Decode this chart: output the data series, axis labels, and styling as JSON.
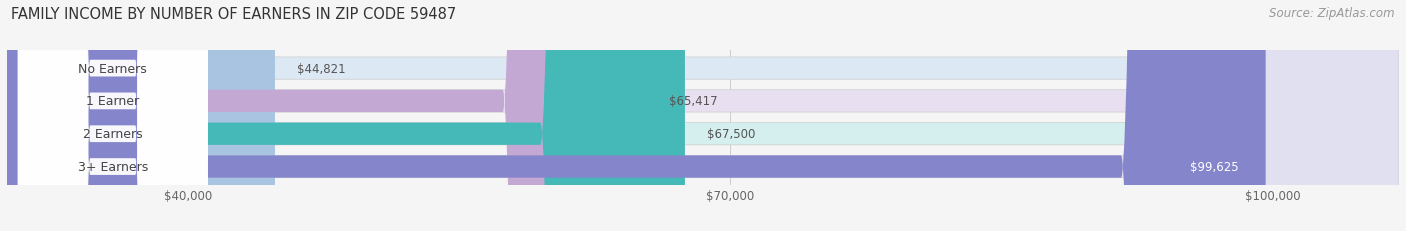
{
  "title": "FAMILY INCOME BY NUMBER OF EARNERS IN ZIP CODE 59487",
  "source": "Source: ZipAtlas.com",
  "categories": [
    "No Earners",
    "1 Earner",
    "2 Earners",
    "3+ Earners"
  ],
  "values": [
    44821,
    65417,
    67500,
    99625
  ],
  "labels": [
    "$44,821",
    "$65,417",
    "$67,500",
    "$99,625"
  ],
  "bar_colors": [
    "#a8c4e0",
    "#c4a8d4",
    "#45b8b8",
    "#8585cc"
  ],
  "bar_bg_colors": [
    "#dde8f5",
    "#e8e0f0",
    "#d5eeee",
    "#e0e0f0"
  ],
  "label_colors": [
    "#555555",
    "#555555",
    "#555555",
    "#ffffff"
  ],
  "x_min": 30000,
  "x_max": 107000,
  "x_ticks": [
    40000,
    70000,
    100000
  ],
  "x_tick_labels": [
    "$40,000",
    "$70,000",
    "$100,000"
  ],
  "background_color": "#f5f5f5",
  "title_fontsize": 10.5,
  "source_fontsize": 8.5,
  "tick_fontsize": 8.5,
  "label_fontsize": 8.5,
  "cat_fontsize": 9
}
